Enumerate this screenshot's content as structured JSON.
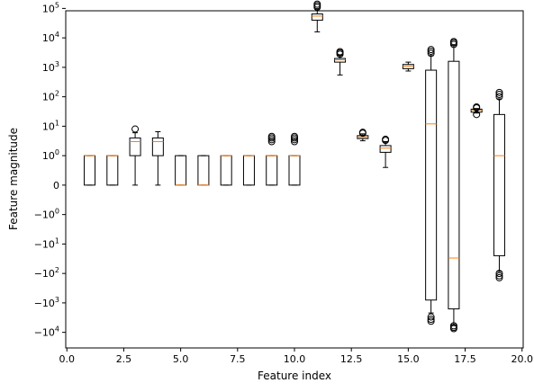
{
  "chart_data": {
    "type": "boxplot",
    "xlabel": "Feature index",
    "ylabel": "Feature magnitude",
    "xlim": [
      -0.05,
      20.05
    ],
    "x_ticks": [
      0.0,
      2.5,
      5.0,
      7.5,
      10.0,
      12.5,
      15.0,
      17.5,
      20.0
    ],
    "x_tick_labels": [
      "0.0",
      "2.5",
      "5.0",
      "7.5",
      "10.0",
      "12.5",
      "15.0",
      "17.5",
      "20.0"
    ],
    "yscale": "symlog",
    "y_ticks": [
      100000,
      10000,
      1000,
      100,
      10,
      1,
      0,
      -1,
      -10,
      -100,
      -1000,
      -10000
    ],
    "y_tick_labels": [
      {
        "base": "10",
        "sup": "5"
      },
      {
        "base": "10",
        "sup": "4"
      },
      {
        "base": "10",
        "sup": "3"
      },
      {
        "base": "10",
        "sup": "2"
      },
      {
        "base": "10",
        "sup": "1"
      },
      {
        "base": "10",
        "sup": "0"
      },
      {
        "base": "0",
        "sup": ""
      },
      {
        "base": "−10",
        "sup": "0"
      },
      {
        "base": "−10",
        "sup": "1"
      },
      {
        "base": "−10",
        "sup": "2"
      },
      {
        "base": "−10",
        "sup": "3"
      },
      {
        "base": "−10",
        "sup": "4"
      }
    ],
    "box_color": "#000000",
    "median_color": "#ff7f0e",
    "boxes": [
      {
        "x": 1,
        "q1": 0,
        "median": 1,
        "q3": 1,
        "whislo": 0,
        "whishi": 1,
        "fliers": []
      },
      {
        "x": 2,
        "q1": 0,
        "median": 1,
        "q3": 1,
        "whislo": 0,
        "whishi": 1,
        "fliers": []
      },
      {
        "x": 3,
        "q1": 1,
        "median": 3,
        "q3": 4,
        "whislo": 0,
        "whishi": 6,
        "fliers": [
          8
        ]
      },
      {
        "x": 4,
        "q1": 1,
        "median": 3,
        "q3": 4,
        "whislo": 0,
        "whishi": 6.5,
        "fliers": []
      },
      {
        "x": 5,
        "q1": 0,
        "median": 0,
        "q3": 1,
        "whislo": 0,
        "whishi": 1,
        "fliers": []
      },
      {
        "x": 6,
        "q1": 0,
        "median": 0,
        "q3": 1,
        "whislo": 0,
        "whishi": 1,
        "fliers": []
      },
      {
        "x": 7,
        "q1": 0,
        "median": 1,
        "q3": 1,
        "whislo": 0,
        "whishi": 1,
        "fliers": []
      },
      {
        "x": 8,
        "q1": 0,
        "median": 1,
        "q3": 1,
        "whislo": 0,
        "whishi": 1,
        "fliers": []
      },
      {
        "x": 9,
        "q1": 0,
        "median": 1,
        "q3": 1,
        "whislo": 0,
        "whishi": 1,
        "fliers": [
          3,
          3.5,
          4,
          4.5
        ]
      },
      {
        "x": 10,
        "q1": 0,
        "median": 1,
        "q3": 1,
        "whislo": 0,
        "whishi": 1,
        "fliers": [
          3,
          3.5,
          4,
          4.5
        ]
      },
      {
        "x": 11,
        "q1": 40000,
        "median": 55000,
        "q3": 65000,
        "whislo": 16000,
        "whishi": 95000,
        "fliers": [
          110000,
          125000,
          140000
        ]
      },
      {
        "x": 12,
        "q1": 1500,
        "median": 1800,
        "q3": 2000,
        "whislo": 550,
        "whishi": 2600,
        "fliers": [
          2800,
          3100,
          3400
        ]
      },
      {
        "x": 13,
        "q1": 3.8,
        "median": 4.2,
        "q3": 4.8,
        "whislo": 3.2,
        "whishi": 5.5,
        "fliers": [
          5.8,
          6.2
        ]
      },
      {
        "x": 14,
        "q1": 1.3,
        "median": 1.8,
        "q3": 2.2,
        "whislo": 0.6,
        "whishi": 3.0,
        "fliers": [
          3.3,
          3.6
        ]
      },
      {
        "x": 15,
        "q1": 900,
        "median": 1100,
        "q3": 1250,
        "whislo": 750,
        "whishi": 1500,
        "fliers": []
      },
      {
        "x": 16,
        "q1": -800,
        "median": 12,
        "q3": 800,
        "whislo": -2200,
        "whishi": 2500,
        "fliers": [
          3000,
          3500,
          4000,
          -3000,
          -3600,
          -4200
        ]
      },
      {
        "x": 17,
        "q1": -1600,
        "median": -30,
        "q3": 1600,
        "whislo": -5500,
        "whishi": 5500,
        "fliers": [
          6000,
          6800,
          7500,
          -6000,
          -6800,
          -7500
        ]
      },
      {
        "x": 18,
        "q1": 30,
        "median": 35,
        "q3": 38,
        "whislo": 28,
        "whishi": 40,
        "fliers": [
          25,
          42,
          45
        ]
      },
      {
        "x": 19,
        "q1": -25,
        "median": 1,
        "q3": 25,
        "whislo": -85,
        "whishi": 85,
        "fliers": [
          100,
          120,
          140,
          -100,
          -120,
          -140
        ]
      }
    ]
  }
}
